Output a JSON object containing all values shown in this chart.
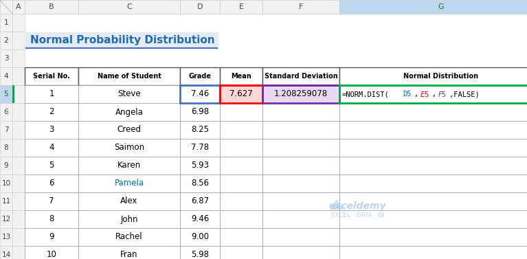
{
  "title": "Normal Probability Distribution",
  "title_color": "#1F6CB0",
  "title_bg": "#E8EDF5",
  "headers": [
    "Serial No.",
    "Name of Student",
    "Grade",
    "Mean",
    "Standard Deviation",
    "Normal Distribution"
  ],
  "rows": [
    [
      "1",
      "Steve",
      "7.46",
      "7.627",
      "1.208259078",
      "=NORM.DIST(D5,$E$5,$F$5,FALSE)"
    ],
    [
      "2",
      "Angela",
      "6.98",
      "",
      "",
      ""
    ],
    [
      "3",
      "Creed",
      "8.25",
      "",
      "",
      ""
    ],
    [
      "4",
      "Saimon",
      "7.78",
      "",
      "",
      ""
    ],
    [
      "5",
      "Karen",
      "5.93",
      "",
      "",
      ""
    ],
    [
      "6",
      "Pamela",
      "8.56",
      "",
      "",
      ""
    ],
    [
      "7",
      "Alex",
      "6.87",
      "",
      "",
      ""
    ],
    [
      "8",
      "John",
      "9.46",
      "",
      "",
      ""
    ],
    [
      "9",
      "Rachel",
      "9.00",
      "",
      "",
      ""
    ],
    [
      "10",
      "Fran",
      "5.98",
      "",
      "",
      ""
    ]
  ],
  "pamela_row_idx": 5,
  "pamela_color": "#0070C0",
  "spreadsheet_bg": "#F2F2F2",
  "col_header_bg": "#F2F2F2",
  "row_header_bg": "#F2F2F2",
  "white": "#FFFFFF",
  "grid_color": "#C0C0C0",
  "title_underline_color": "#4472C4",
  "col_d_border_color": "#4472C4",
  "col_e_border_color": "#FF0000",
  "col_f_border_color": "#7030A0",
  "col_g_border_color": "#00B050",
  "g_header_bg": "#C6EFCE",
  "g_header_border": "#375623",
  "e5_bg": "#FFD7D7",
  "f5_bg": "#EAD8F5",
  "highlight_header_bg": "#BDD7EE",
  "highlight_row5_color": "#375623",
  "watermark_color": "#A8C8E8",
  "formula_parts": [
    [
      "=NORM.DIST(",
      "#000000"
    ],
    [
      "D5",
      "#0070C0"
    ],
    [
      ",",
      "#000000"
    ],
    [
      "$E$5",
      "#FF0000"
    ],
    [
      ",",
      "#000000"
    ],
    [
      "$F$5",
      "#7030A0"
    ],
    [
      ",FALSE)",
      "#000000"
    ]
  ]
}
